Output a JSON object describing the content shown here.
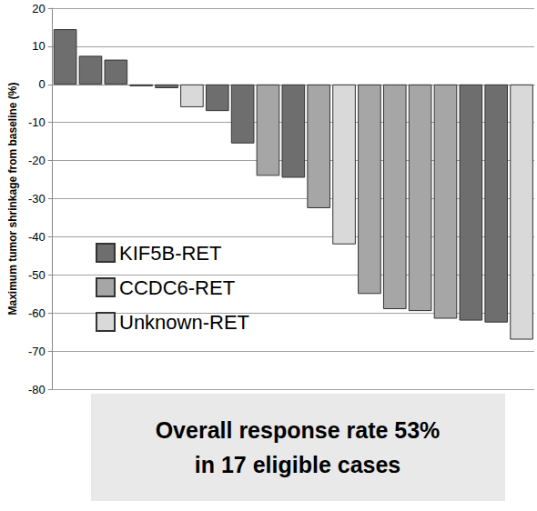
{
  "chart_data": {
    "type": "bar",
    "y_label": "Maximum tumor shrinkage from baseline (%)",
    "annotation": [
      "Overall response rate 53%",
      "in 17 eligible cases"
    ],
    "categories": [
      null,
      null,
      null,
      null,
      null,
      null,
      null,
      null,
      null,
      null,
      null,
      null,
      null,
      null,
      null,
      null,
      null,
      null,
      null
    ],
    "series": [
      {
        "name": "KIF5B-RET",
        "color": "#6e6e6e",
        "values": [
          14.5,
          7.5,
          6.5,
          -0.5,
          -1,
          null,
          -7,
          -15.5,
          null,
          -24.5,
          null,
          null,
          null,
          null,
          null,
          null,
          -62,
          -62.5,
          null
        ]
      },
      {
        "name": "CCDC6-RET",
        "color": "#a6a6a6",
        "values": [
          null,
          null,
          null,
          null,
          null,
          null,
          null,
          null,
          -24,
          null,
          -32.5,
          null,
          -55,
          -59,
          -59.5,
          -61.5,
          null,
          null,
          null
        ]
      },
      {
        "name": "Unknown-RET",
        "color": "#d9d9d9",
        "values": [
          null,
          null,
          null,
          null,
          null,
          -6,
          null,
          null,
          null,
          null,
          null,
          -42,
          null,
          null,
          null,
          null,
          null,
          null,
          -67
        ]
      }
    ],
    "ylim": [
      -80,
      20
    ],
    "yticks": [
      -80,
      -70,
      -60,
      -50,
      -40,
      -30,
      -20,
      -10,
      0,
      10,
      20
    ],
    "grid": true,
    "legend": "left",
    "stacked": true,
    "tick_labels": "y"
  }
}
